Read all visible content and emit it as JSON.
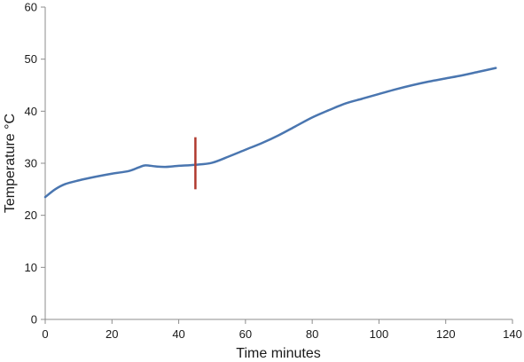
{
  "chart_data": {
    "type": "line",
    "title": "",
    "xlabel": "Time minutes",
    "ylabel": "Temperature °C",
    "xlim": [
      0,
      140
    ],
    "ylim": [
      0,
      60
    ],
    "x_ticks": [
      0,
      20,
      40,
      60,
      80,
      100,
      120,
      140
    ],
    "y_ticks": [
      0,
      10,
      20,
      30,
      40,
      50,
      60
    ],
    "x_tick_labels": [
      "0",
      "20",
      "40",
      "60",
      "80",
      "100",
      "120",
      "140"
    ],
    "y_tick_labels": [
      "0",
      "10",
      "20",
      "30",
      "40",
      "50",
      "60"
    ],
    "grid": false,
    "legend": "none",
    "series": [
      {
        "color": "#4a76b0",
        "x": [
          0,
          3,
          6,
          10,
          15,
          20,
          25,
          28,
          30,
          33,
          36,
          40,
          45,
          50,
          55,
          60,
          65,
          70,
          75,
          80,
          85,
          90,
          95,
          100,
          105,
          110,
          115,
          120,
          125,
          130,
          135
        ],
        "y": [
          23.5,
          25.0,
          26.0,
          26.7,
          27.4,
          28.0,
          28.5,
          29.2,
          29.6,
          29.4,
          29.3,
          29.5,
          29.7,
          30.1,
          31.3,
          32.6,
          33.9,
          35.4,
          37.1,
          38.8,
          40.2,
          41.5,
          42.4,
          43.3,
          44.2,
          45.0,
          45.7,
          46.3,
          46.9,
          47.6,
          48.3
        ]
      }
    ],
    "marker_line": {
      "color": "#b03a2e",
      "x": 45,
      "y_range": [
        25,
        35
      ]
    }
  }
}
